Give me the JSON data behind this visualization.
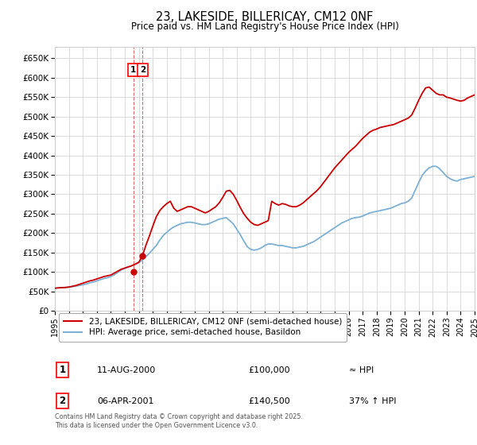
{
  "title": "23, LAKESIDE, BILLERICAY, CM12 0NF",
  "subtitle": "Price paid vs. HM Land Registry's House Price Index (HPI)",
  "bg_color": "#ffffff",
  "grid_color": "#cccccc",
  "line1_color": "#cc0000",
  "line2_color": "#7cb0d4",
  "ylim": [
    0,
    680000
  ],
  "yticks": [
    0,
    50000,
    100000,
    150000,
    200000,
    250000,
    300000,
    350000,
    400000,
    450000,
    500000,
    550000,
    600000,
    650000
  ],
  "ytick_labels": [
    "£0",
    "£50K",
    "£100K",
    "£150K",
    "£200K",
    "£250K",
    "£300K",
    "£350K",
    "£400K",
    "£450K",
    "£500K",
    "£550K",
    "£600K",
    "£650K"
  ],
  "xlim": [
    1995,
    2025
  ],
  "xtick_years": [
    1995,
    1996,
    1997,
    1998,
    1999,
    2000,
    2001,
    2002,
    2003,
    2004,
    2005,
    2006,
    2007,
    2008,
    2009,
    2010,
    2011,
    2012,
    2013,
    2014,
    2015,
    2016,
    2017,
    2018,
    2019,
    2020,
    2021,
    2022,
    2023,
    2024,
    2025
  ],
  "transactions": [
    {
      "label": "1",
      "date": "11-AUG-2000",
      "price": 100000,
      "price_str": "£100,000",
      "note": "≈ HPI",
      "x_year": 2000.61
    },
    {
      "label": "2",
      "date": "06-APR-2001",
      "price": 140500,
      "price_str": "£140,500",
      "note": "37% ↑ HPI",
      "x_year": 2001.27
    }
  ],
  "legend_line1": "23, LAKESIDE, BILLERICAY, CM12 0NF (semi-detached house)",
  "legend_line2": "HPI: Average price, semi-detached house, Basildon",
  "footer": "Contains HM Land Registry data © Crown copyright and database right 2025.\nThis data is licensed under the Open Government Licence v3.0.",
  "hpi_years": [
    1995.0,
    1995.25,
    1995.5,
    1995.75,
    1996.0,
    1996.25,
    1996.5,
    1996.75,
    1997.0,
    1997.25,
    1997.5,
    1997.75,
    1998.0,
    1998.25,
    1998.5,
    1998.75,
    1999.0,
    1999.25,
    1999.5,
    1999.75,
    2000.0,
    2000.25,
    2000.5,
    2000.75,
    2001.0,
    2001.25,
    2001.5,
    2001.75,
    2002.0,
    2002.25,
    2002.5,
    2002.75,
    2003.0,
    2003.25,
    2003.5,
    2003.75,
    2004.0,
    2004.25,
    2004.5,
    2004.75,
    2005.0,
    2005.25,
    2005.5,
    2005.75,
    2006.0,
    2006.25,
    2006.5,
    2006.75,
    2007.0,
    2007.25,
    2007.5,
    2007.75,
    2008.0,
    2008.25,
    2008.5,
    2008.75,
    2009.0,
    2009.25,
    2009.5,
    2009.75,
    2010.0,
    2010.25,
    2010.5,
    2010.75,
    2011.0,
    2011.25,
    2011.5,
    2011.75,
    2012.0,
    2012.25,
    2012.5,
    2012.75,
    2013.0,
    2013.25,
    2013.5,
    2013.75,
    2014.0,
    2014.25,
    2014.5,
    2014.75,
    2015.0,
    2015.25,
    2015.5,
    2015.75,
    2016.0,
    2016.25,
    2016.5,
    2016.75,
    2017.0,
    2017.25,
    2017.5,
    2017.75,
    2018.0,
    2018.25,
    2018.5,
    2018.75,
    2019.0,
    2019.25,
    2019.5,
    2019.75,
    2020.0,
    2020.25,
    2020.5,
    2020.75,
    2021.0,
    2021.25,
    2021.5,
    2021.75,
    2022.0,
    2022.25,
    2022.5,
    2022.75,
    2023.0,
    2023.25,
    2023.5,
    2023.75,
    2024.0,
    2024.25,
    2024.5,
    2024.75,
    2025.0
  ],
  "hpi_values": [
    58000,
    59000,
    59500,
    60000,
    61000,
    62000,
    63500,
    65000,
    67000,
    69000,
    72000,
    74000,
    77000,
    80000,
    83000,
    85000,
    88000,
    93000,
    99000,
    105000,
    109000,
    113000,
    116000,
    120000,
    124000,
    130000,
    139000,
    148000,
    158000,
    168000,
    182000,
    194000,
    202000,
    210000,
    216000,
    220000,
    224000,
    226000,
    228000,
    228000,
    226000,
    224000,
    222000,
    222000,
    224000,
    228000,
    232000,
    236000,
    238000,
    240000,
    232000,
    224000,
    210000,
    196000,
    180000,
    165000,
    158000,
    156000,
    158000,
    162000,
    168000,
    172000,
    172000,
    170000,
    168000,
    168000,
    166000,
    164000,
    162000,
    162000,
    164000,
    166000,
    170000,
    174000,
    178000,
    184000,
    190000,
    196000,
    202000,
    208000,
    214000,
    220000,
    226000,
    230000,
    234000,
    238000,
    240000,
    241000,
    244000,
    248000,
    252000,
    254000,
    256000,
    258000,
    260000,
    262000,
    264000,
    268000,
    272000,
    276000,
    278000,
    282000,
    290000,
    310000,
    330000,
    348000,
    360000,
    368000,
    372000,
    372000,
    366000,
    356000,
    346000,
    340000,
    336000,
    334000,
    338000,
    340000,
    342000,
    344000,
    346000
  ],
  "red_years": [
    1995.0,
    1995.25,
    1995.5,
    1995.75,
    1996.0,
    1996.25,
    1996.5,
    1996.75,
    1997.0,
    1997.25,
    1997.5,
    1997.75,
    1998.0,
    1998.25,
    1998.5,
    1998.75,
    1999.0,
    1999.25,
    1999.5,
    1999.75,
    2000.0,
    2000.25,
    2000.5,
    2000.75,
    2001.0,
    2001.25,
    2001.5,
    2001.75,
    2002.0,
    2002.25,
    2002.5,
    2002.75,
    2003.0,
    2003.25,
    2003.5,
    2003.75,
    2004.0,
    2004.25,
    2004.5,
    2004.75,
    2005.0,
    2005.25,
    2005.5,
    2005.75,
    2006.0,
    2006.25,
    2006.5,
    2006.75,
    2007.0,
    2007.25,
    2007.5,
    2007.75,
    2008.0,
    2008.25,
    2008.5,
    2008.75,
    2009.0,
    2009.25,
    2009.5,
    2009.75,
    2010.0,
    2010.25,
    2010.5,
    2010.75,
    2011.0,
    2011.25,
    2011.5,
    2011.75,
    2012.0,
    2012.25,
    2012.5,
    2012.75,
    2013.0,
    2013.25,
    2013.5,
    2013.75,
    2014.0,
    2014.25,
    2014.5,
    2014.75,
    2015.0,
    2015.25,
    2015.5,
    2015.75,
    2016.0,
    2016.25,
    2016.5,
    2016.75,
    2017.0,
    2017.25,
    2017.5,
    2017.75,
    2018.0,
    2018.25,
    2018.5,
    2018.75,
    2019.0,
    2019.25,
    2019.5,
    2019.75,
    2020.0,
    2020.25,
    2020.5,
    2020.75,
    2021.0,
    2021.25,
    2021.5,
    2021.75,
    2022.0,
    2022.25,
    2022.5,
    2022.75,
    2023.0,
    2023.25,
    2023.5,
    2023.75,
    2024.0,
    2024.25,
    2024.5,
    2024.75,
    2025.0
  ],
  "red_values": [
    58000,
    59000,
    59500,
    60000,
    61000,
    63000,
    65000,
    68000,
    71000,
    74000,
    77000,
    79000,
    82000,
    85000,
    88000,
    90000,
    92000,
    97000,
    102000,
    107000,
    110000,
    113000,
    116000,
    120000,
    125000,
    140500,
    168000,
    192000,
    218000,
    242000,
    258000,
    268000,
    276000,
    282000,
    264000,
    256000,
    260000,
    264000,
    268000,
    268000,
    264000,
    260000,
    256000,
    252000,
    256000,
    262000,
    268000,
    278000,
    292000,
    308000,
    310000,
    300000,
    284000,
    266000,
    250000,
    238000,
    228000,
    222000,
    220000,
    224000,
    228000,
    232000,
    282000,
    276000,
    272000,
    276000,
    274000,
    270000,
    268000,
    268000,
    272000,
    278000,
    286000,
    294000,
    302000,
    310000,
    320000,
    332000,
    344000,
    356000,
    368000,
    378000,
    388000,
    398000,
    408000,
    416000,
    424000,
    434000,
    444000,
    452000,
    460000,
    465000,
    468000,
    472000,
    474000,
    476000,
    478000,
    480000,
    484000,
    488000,
    492000,
    496000,
    504000,
    522000,
    542000,
    560000,
    574000,
    576000,
    568000,
    560000,
    556000,
    556000,
    550000,
    548000,
    545000,
    542000,
    540000,
    542000,
    548000,
    552000,
    556000
  ]
}
